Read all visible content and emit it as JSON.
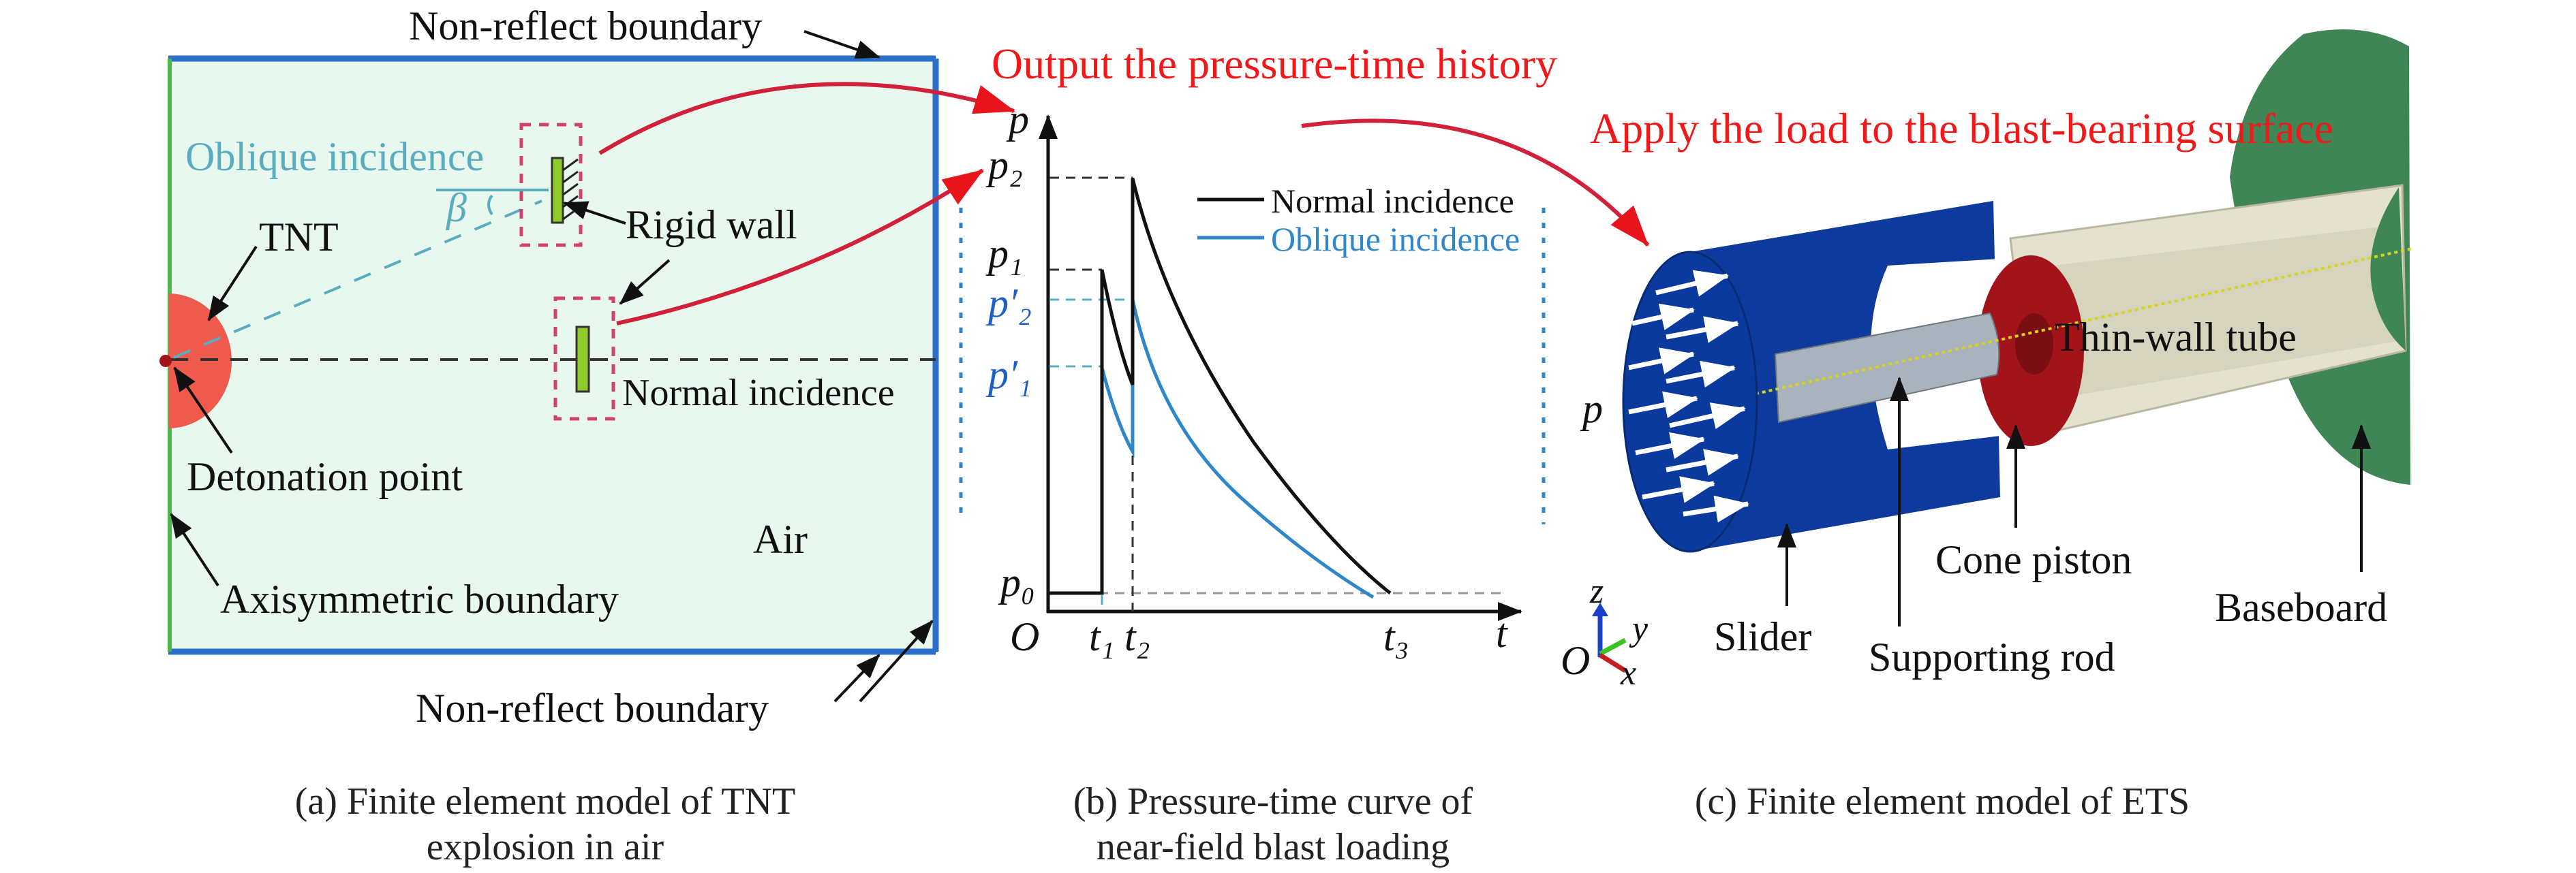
{
  "colors": {
    "accent_red": "#f01818",
    "domain_fill": "#e8f8ee",
    "boundary_blue": "#2a6fc9",
    "axis_green": "#4cb84a",
    "tnt_red": "#ee5a4e",
    "oblique_blue": "#2f86c9",
    "slider_blue": "#0d3a9c",
    "piston_red": "#a3141a",
    "tube_cream": "#e4e2cf",
    "baseboard_green": "#3f8556"
  },
  "panel_a": {
    "top_boundary": "Non-reflect boundary",
    "bottom_boundary": "Non-reflect boundary",
    "oblique": "Oblique incidence",
    "beta": "β",
    "tnt": "TNT",
    "rigid_wall": "Rigid wall",
    "normal": "Normal incidence",
    "detonation": "Detonation point",
    "air": "Air",
    "axisymmetric": "Axisymmetric boundary",
    "caption_line1": "(a) Finite element model of TNT",
    "caption_line2": "explosion in air"
  },
  "panel_b": {
    "title": "Output the pressure-time history",
    "y_axis": "p",
    "x_axis": "t",
    "origin": "O",
    "p2": "p₂",
    "p1": "p₁",
    "p2_prime": "p′₂",
    "p1_prime": "p′₁",
    "p0": "p₀",
    "t1": "t₁",
    "t2": "t₂",
    "t3": "t₃",
    "legend": [
      "Normal incidence",
      "Oblique incidence"
    ],
    "caption_line1": "(b) Pressure-time curve of",
    "caption_line2": "near-field blast loading"
  },
  "panel_c": {
    "title": "Apply the load to the blast-bearing surface",
    "p": "p",
    "thin_wall_tube": "Thin-wall tube",
    "slider": "Slider",
    "supporting_rod": "Supporting rod",
    "cone_piston": "Cone piston",
    "baseboard": "Baseboard",
    "axes": {
      "origin": "O",
      "z": "z",
      "y": "y",
      "x": "x"
    },
    "caption": "(c) Finite element model of ETS"
  }
}
